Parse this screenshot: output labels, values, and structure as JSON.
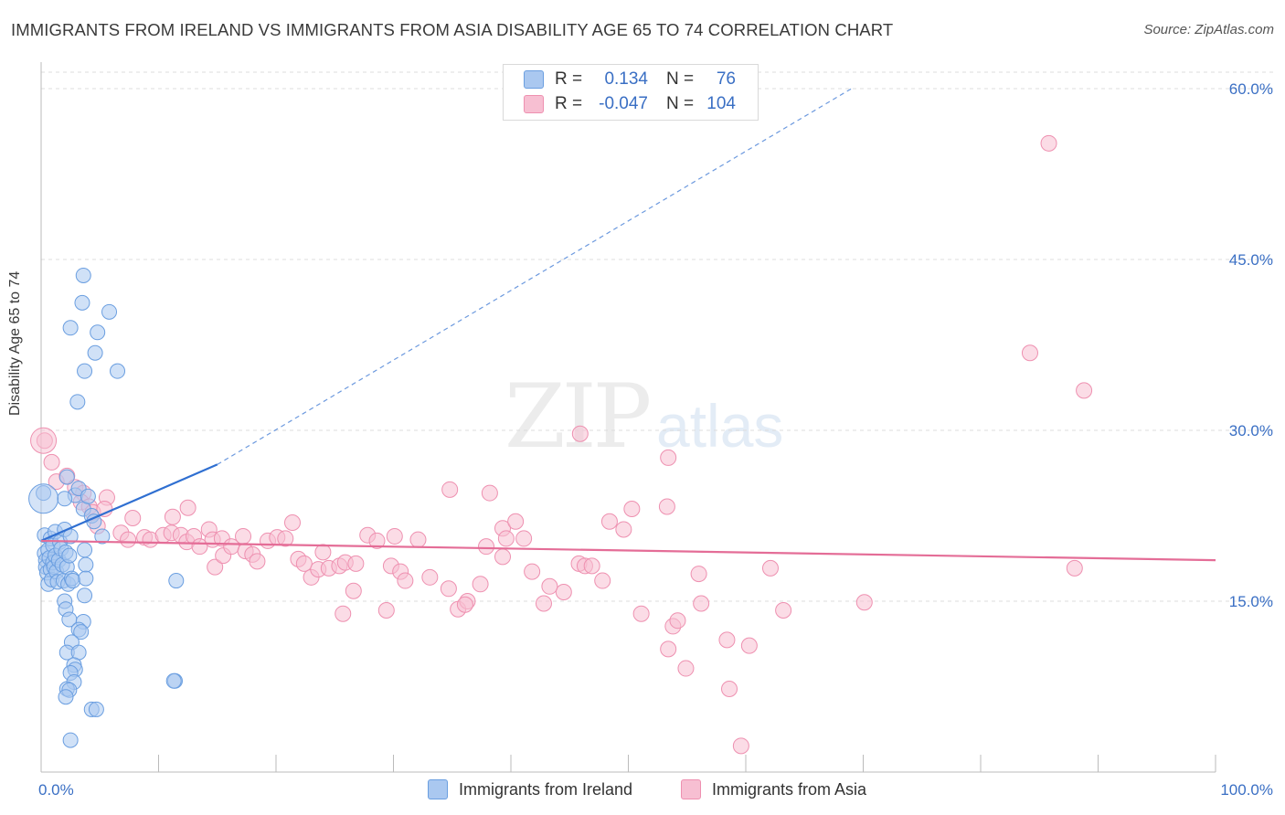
{
  "title": "IMMIGRANTS FROM IRELAND VS IMMIGRANTS FROM ASIA DISABILITY AGE 65 TO 74 CORRELATION CHART",
  "source": "Source: ZipAtlas.com",
  "watermark": {
    "zip": "ZIP",
    "atlas": "atlas"
  },
  "colors": {
    "ireland_fill": "#aac8f0",
    "ireland_stroke": "#6a9ee0",
    "ireland_line": "#2f6fd1",
    "asia_fill": "#f7bfd2",
    "asia_stroke": "#ee90b0",
    "asia_line": "#e46d97",
    "grid": "#dcdcdc",
    "axis_text": "#3a6fc4"
  },
  "legend": {
    "rows": [
      {
        "r_label": "R =",
        "r_value": "0.134",
        "n_label": "N =",
        "n_value": "76"
      },
      {
        "r_label": "R =",
        "r_value": "-0.047",
        "n_label": "N =",
        "n_value": "104"
      }
    ]
  },
  "bottom_legend": {
    "ireland": "Immigrants from Ireland",
    "asia": "Immigrants from Asia"
  },
  "chart_data": {
    "type": "scatter",
    "title": "IMMIGRANTS FROM IRELAND VS IMMIGRANTS FROM ASIA DISABILITY AGE 65 TO 74 CORRELATION CHART",
    "xlabel": "",
    "ylabel": "Disability Age 65 to 74",
    "xlim": [
      0,
      100
    ],
    "ylim": [
      0,
      60
    ],
    "x_tick_labels": [
      "0.0%",
      "100.0%"
    ],
    "y_ticks": [
      15,
      30,
      45,
      60
    ],
    "y_tick_labels": [
      "15.0%",
      "30.0%",
      "45.0%",
      "60.0%"
    ],
    "grid": true,
    "legend_position": "top-center",
    "series": [
      {
        "name": "Immigrants from Ireland",
        "r": 0.134,
        "n": 76,
        "trend": {
          "x0": 0,
          "y0": 20.3,
          "x1": 15,
          "y1": 27.0,
          "extended_x1": 69,
          "extended_y1": 60
        },
        "points": [
          [
            0.2,
            24.5
          ],
          [
            0.3,
            20.8
          ],
          [
            0.3,
            19.2
          ],
          [
            0.4,
            18.6
          ],
          [
            0.4,
            18.0
          ],
          [
            0.5,
            17.5
          ],
          [
            0.6,
            19.5
          ],
          [
            0.6,
            16.5
          ],
          [
            0.7,
            18.8
          ],
          [
            0.8,
            20.5
          ],
          [
            0.8,
            17.8
          ],
          [
            0.9,
            16.9
          ],
          [
            1.0,
            18.4
          ],
          [
            1.0,
            19.9
          ],
          [
            1.1,
            18.0
          ],
          [
            1.2,
            21.1
          ],
          [
            1.2,
            19.0
          ],
          [
            1.3,
            17.6
          ],
          [
            1.4,
            16.7
          ],
          [
            1.5,
            18.6
          ],
          [
            1.6,
            20.2
          ],
          [
            1.7,
            19.6
          ],
          [
            1.8,
            18.2
          ],
          [
            1.9,
            16.8
          ],
          [
            2.0,
            21.3
          ],
          [
            2.1,
            19.3
          ],
          [
            2.2,
            18.0
          ],
          [
            2.3,
            16.5
          ],
          [
            2.4,
            19.0
          ],
          [
            2.5,
            20.7
          ],
          [
            2.6,
            17.0
          ],
          [
            2.7,
            16.8
          ],
          [
            2.2,
            25.9
          ],
          [
            2.9,
            24.3
          ],
          [
            3.2,
            24.9
          ],
          [
            3.6,
            23.1
          ],
          [
            4.0,
            24.2
          ],
          [
            4.3,
            22.5
          ],
          [
            4.5,
            22.0
          ],
          [
            5.2,
            20.7
          ],
          [
            3.6,
            43.6
          ],
          [
            3.5,
            41.2
          ],
          [
            5.8,
            40.4
          ],
          [
            2.5,
            39.0
          ],
          [
            4.8,
            38.6
          ],
          [
            4.6,
            36.8
          ],
          [
            3.7,
            35.2
          ],
          [
            6.5,
            35.2
          ],
          [
            3.1,
            32.5
          ],
          [
            3.7,
            19.5
          ],
          [
            3.8,
            18.2
          ],
          [
            3.8,
            17.0
          ],
          [
            3.7,
            15.5
          ],
          [
            2.0,
            15.0
          ],
          [
            2.1,
            14.3
          ],
          [
            2.4,
            13.4
          ],
          [
            3.6,
            13.2
          ],
          [
            3.2,
            12.5
          ],
          [
            3.4,
            12.3
          ],
          [
            2.6,
            11.4
          ],
          [
            2.2,
            10.5
          ],
          [
            3.2,
            10.5
          ],
          [
            2.8,
            9.4
          ],
          [
            2.9,
            9.0
          ],
          [
            2.5,
            8.7
          ],
          [
            2.8,
            7.9
          ],
          [
            2.2,
            7.3
          ],
          [
            2.4,
            7.2
          ],
          [
            2.1,
            6.6
          ],
          [
            4.3,
            5.5
          ],
          [
            4.7,
            5.5
          ],
          [
            2.5,
            2.8
          ],
          [
            11.4,
            8.0
          ],
          [
            11.3,
            8.0
          ],
          [
            11.5,
            16.8
          ],
          [
            2.0,
            24.0
          ]
        ]
      },
      {
        "name": "Immigrants from Asia",
        "r": -0.047,
        "n": 104,
        "trend": {
          "x0": 0,
          "y0": 20.3,
          "x1": 100,
          "y1": 18.6
        },
        "points": [
          [
            0.3,
            29.1
          ],
          [
            0.9,
            27.2
          ],
          [
            1.3,
            25.5
          ],
          [
            2.2,
            26.0
          ],
          [
            2.9,
            25.0
          ],
          [
            3.6,
            24.5
          ],
          [
            3.4,
            23.7
          ],
          [
            4.1,
            23.3
          ],
          [
            4.4,
            22.8
          ],
          [
            5.6,
            24.1
          ],
          [
            5.4,
            23.1
          ],
          [
            4.8,
            21.6
          ],
          [
            7.8,
            22.3
          ],
          [
            6.8,
            21.0
          ],
          [
            7.4,
            20.4
          ],
          [
            8.8,
            20.6
          ],
          [
            9.3,
            20.4
          ],
          [
            10.4,
            20.8
          ],
          [
            11.1,
            21.0
          ],
          [
            12.5,
            23.2
          ],
          [
            11.2,
            22.4
          ],
          [
            11.9,
            20.8
          ],
          [
            12.4,
            20.2
          ],
          [
            13.0,
            20.7
          ],
          [
            13.5,
            19.8
          ],
          [
            14.3,
            21.3
          ],
          [
            14.6,
            20.4
          ],
          [
            15.4,
            20.5
          ],
          [
            14.8,
            18.0
          ],
          [
            15.5,
            19.0
          ],
          [
            16.2,
            19.8
          ],
          [
            17.2,
            20.7
          ],
          [
            17.4,
            19.4
          ],
          [
            18.0,
            19.1
          ],
          [
            18.4,
            18.5
          ],
          [
            19.3,
            20.3
          ],
          [
            20.1,
            20.6
          ],
          [
            20.8,
            20.5
          ],
          [
            21.4,
            21.9
          ],
          [
            21.9,
            18.7
          ],
          [
            22.4,
            18.3
          ],
          [
            23.0,
            17.1
          ],
          [
            23.6,
            17.8
          ],
          [
            24.0,
            19.3
          ],
          [
            24.5,
            17.9
          ],
          [
            25.4,
            18.1
          ],
          [
            25.9,
            18.4
          ],
          [
            26.8,
            18.3
          ],
          [
            26.6,
            15.9
          ],
          [
            25.7,
            13.9
          ],
          [
            27.8,
            20.8
          ],
          [
            28.6,
            20.3
          ],
          [
            29.4,
            14.2
          ],
          [
            29.8,
            18.1
          ],
          [
            30.1,
            20.7
          ],
          [
            30.6,
            17.6
          ],
          [
            31.0,
            16.8
          ],
          [
            32.1,
            20.4
          ],
          [
            33.1,
            17.1
          ],
          [
            34.7,
            16.1
          ],
          [
            35.5,
            14.3
          ],
          [
            36.3,
            15.0
          ],
          [
            36.1,
            14.7
          ],
          [
            37.4,
            16.5
          ],
          [
            37.9,
            19.8
          ],
          [
            34.8,
            24.8
          ],
          [
            38.2,
            24.5
          ],
          [
            39.3,
            21.4
          ],
          [
            39.6,
            20.5
          ],
          [
            39.3,
            18.9
          ],
          [
            40.4,
            22.0
          ],
          [
            41.1,
            20.5
          ],
          [
            41.8,
            17.6
          ],
          [
            42.8,
            14.8
          ],
          [
            44.5,
            15.8
          ],
          [
            43.3,
            16.3
          ],
          [
            45.8,
            18.3
          ],
          [
            46.3,
            18.1
          ],
          [
            46.9,
            18.1
          ],
          [
            47.8,
            16.8
          ],
          [
            45.9,
            29.7
          ],
          [
            48.4,
            22.0
          ],
          [
            49.6,
            21.3
          ],
          [
            50.3,
            23.1
          ],
          [
            51.1,
            13.9
          ],
          [
            53.8,
            12.8
          ],
          [
            53.4,
            10.8
          ],
          [
            54.2,
            13.3
          ],
          [
            54.9,
            9.1
          ],
          [
            56.2,
            14.8
          ],
          [
            56.0,
            17.4
          ],
          [
            58.6,
            7.3
          ],
          [
            58.4,
            11.6
          ],
          [
            60.3,
            11.1
          ],
          [
            59.6,
            2.3
          ],
          [
            62.1,
            17.9
          ],
          [
            63.2,
            14.2
          ],
          [
            70.1,
            14.9
          ],
          [
            88.0,
            17.9
          ],
          [
            88.8,
            33.5
          ],
          [
            84.2,
            36.8
          ],
          [
            53.4,
            27.6
          ],
          [
            53.3,
            23.3
          ],
          [
            85.8,
            55.2
          ]
        ]
      }
    ]
  }
}
